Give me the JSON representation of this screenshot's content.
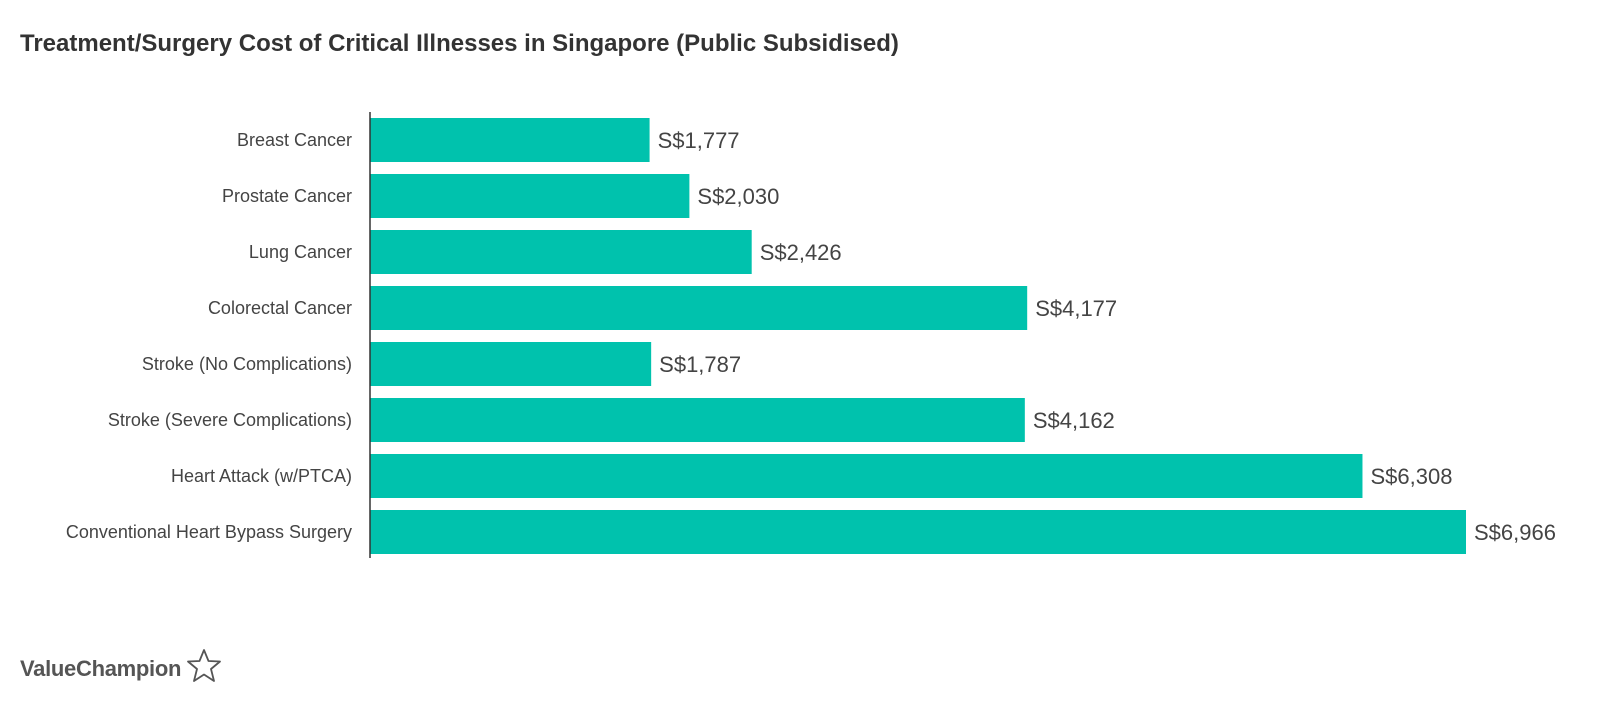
{
  "chart_data": {
    "type": "bar",
    "orientation": "horizontal",
    "title": "Treatment/Surgery Cost of Critical Illnesses in Singapore (Public Subsidised)",
    "categories": [
      "Breast Cancer",
      "Prostate Cancer",
      "Lung Cancer",
      "Colorectal Cancer",
      "Stroke (No Complications)",
      "Stroke (Severe Complications)",
      "Heart Attack (w/PTCA)",
      "Conventional Heart Bypass Surgery"
    ],
    "values": [
      1777,
      2030,
      2426,
      4177,
      1787,
      4162,
      6308,
      6966
    ],
    "data_labels": [
      "S$1,777",
      "S$2,030",
      "S$2,426",
      "S$4,177",
      "S$1,787",
      "S$4,162",
      "S$6,308",
      "S$6,966"
    ],
    "xlim": [
      0,
      6966
    ],
    "grid": false,
    "bar_color": "#00c2ad"
  },
  "brand": {
    "name": "ValueChampion",
    "icon": "star-outline-icon"
  }
}
